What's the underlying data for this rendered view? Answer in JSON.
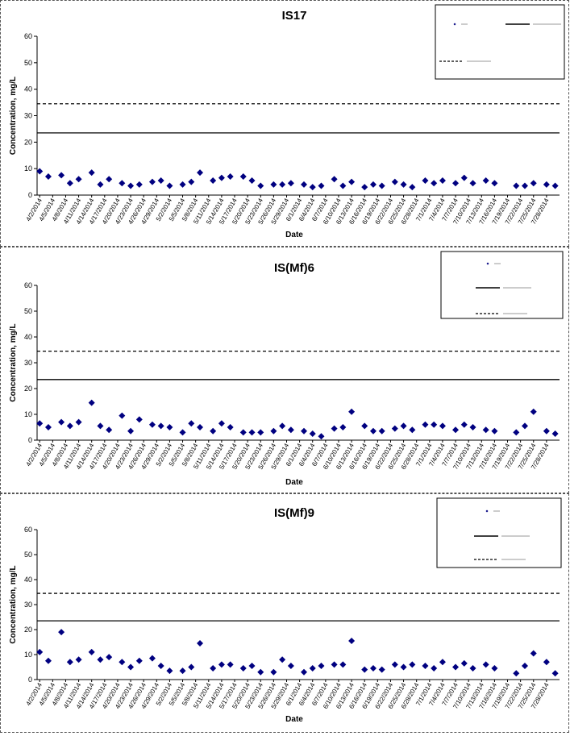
{
  "chart_data": [
    {
      "type": "scatter",
      "title": "IS17",
      "xlabel": "Date",
      "ylabel": "Concentration, mg/L",
      "ylim": [
        0,
        60
      ],
      "yticks": [
        0,
        10,
        20,
        30,
        40,
        50,
        60
      ],
      "x_tick_labels": [
        "4/2/2014",
        "4/5/2014",
        "4/8/2014",
        "4/11/2014",
        "4/14/2014",
        "4/17/2014",
        "4/20/2014",
        "4/23/2014",
        "4/26/2014",
        "4/29/2014",
        "5/2/2014",
        "5/5/2014",
        "5/8/2014",
        "5/11/2014",
        "5/14/2014",
        "5/17/2014",
        "5/20/2014",
        "5/23/2014",
        "5/26/2014",
        "5/29/2014",
        "6/1/2014",
        "6/4/2014",
        "6/7/2014",
        "6/10/2014",
        "6/13/2014",
        "6/16/2014",
        "6/19/2014",
        "6/22/2014",
        "6/25/2014",
        "6/28/2014",
        "7/1/2014",
        "7/4/2014",
        "7/7/2014",
        "7/10/2014",
        "7/13/2014",
        "7/16/2014",
        "7/19/2014",
        "7/22/2014",
        "7/25/2014",
        "7/28/2014"
      ],
      "series": [
        {
          "kind": "points",
          "color": "#000080",
          "x": [
            "4/2/2014",
            "4/4/2014",
            "4/7/2014",
            "4/9/2014",
            "4/11/2014",
            "4/14/2014",
            "4/16/2014",
            "4/18/2014",
            "4/21/2014",
            "4/23/2014",
            "4/25/2014",
            "4/28/2014",
            "4/30/2014",
            "5/2/2014",
            "5/5/2014",
            "5/7/2014",
            "5/9/2014",
            "5/12/2014",
            "5/14/2014",
            "5/16/2014",
            "5/19/2014",
            "5/21/2014",
            "5/23/2014",
            "5/26/2014",
            "5/28/2014",
            "5/30/2014",
            "6/2/2014",
            "6/4/2014",
            "6/6/2014",
            "6/9/2014",
            "6/11/2014",
            "6/13/2014",
            "6/16/2014",
            "6/18/2014",
            "6/20/2014",
            "6/23/2014",
            "6/25/2014",
            "6/27/2014",
            "6/30/2014",
            "7/2/2014",
            "7/4/2014",
            "7/7/2014",
            "7/9/2014",
            "7/11/2014",
            "7/14/2014",
            "7/16/2014",
            "7/21/2014",
            "7/23/2014",
            "7/25/2014",
            "7/28/2014",
            "7/30/2014"
          ],
          "y": [
            9,
            7,
            7.5,
            4.5,
            6,
            8.5,
            4,
            6,
            4.5,
            3.5,
            4,
            5,
            5.5,
            3.5,
            4,
            5,
            8.5,
            5.5,
            6.5,
            7,
            7,
            5.5,
            3.5,
            4,
            4,
            4.5,
            4,
            3,
            3.5,
            6,
            3.5,
            5,
            3,
            4,
            3.5,
            5,
            4,
            3,
            5.5,
            4.5,
            5.5,
            4.5,
            6.5,
            4.5,
            5.5,
            4.5,
            3.5,
            3.5,
            4.5,
            4,
            3.5
          ]
        },
        {
          "kind": "hline",
          "style": "solid",
          "y": 23.5
        },
        {
          "kind": "hline",
          "style": "dashed",
          "y": 34.5
        }
      ]
    },
    {
      "type": "scatter",
      "title": "IS(Mf)6",
      "xlabel": "Date",
      "ylabel": "Concentration, mg/L",
      "ylim": [
        0,
        60
      ],
      "yticks": [
        0,
        10,
        20,
        30,
        40,
        50,
        60
      ],
      "x_tick_labels": [
        "4/2/2014",
        "4/5/2014",
        "4/8/2014",
        "4/11/2014",
        "4/14/2014",
        "4/17/2014",
        "4/20/2014",
        "4/23/2014",
        "4/26/2014",
        "4/29/2014",
        "5/2/2014",
        "5/5/2014",
        "5/8/2014",
        "5/11/2014",
        "5/14/2014",
        "5/17/2014",
        "5/20/2014",
        "5/23/2014",
        "5/26/2014",
        "5/29/2014",
        "6/1/2014",
        "6/4/2014",
        "6/7/2014",
        "6/10/2014",
        "6/13/2014",
        "6/16/2014",
        "6/19/2014",
        "6/22/2014",
        "6/25/2014",
        "6/28/2014",
        "7/1/2014",
        "7/4/2014",
        "7/7/2014",
        "7/10/2014",
        "7/13/2014",
        "7/16/2014",
        "7/19/2014",
        "7/22/2014",
        "7/25/2014",
        "7/28/2014"
      ],
      "series": [
        {
          "kind": "points",
          "color": "#000080",
          "x": [
            "4/2/2014",
            "4/4/2014",
            "4/7/2014",
            "4/9/2014",
            "4/11/2014",
            "4/14/2014",
            "4/16/2014",
            "4/18/2014",
            "4/21/2014",
            "4/23/2014",
            "4/25/2014",
            "4/28/2014",
            "4/30/2014",
            "5/2/2014",
            "5/5/2014",
            "5/7/2014",
            "5/9/2014",
            "5/12/2014",
            "5/14/2014",
            "5/16/2014",
            "5/19/2014",
            "5/21/2014",
            "5/23/2014",
            "5/26/2014",
            "5/28/2014",
            "5/30/2014",
            "6/2/2014",
            "6/4/2014",
            "6/6/2014",
            "6/9/2014",
            "6/11/2014",
            "6/13/2014",
            "6/16/2014",
            "6/18/2014",
            "6/20/2014",
            "6/23/2014",
            "6/25/2014",
            "6/27/2014",
            "6/30/2014",
            "7/2/2014",
            "7/4/2014",
            "7/7/2014",
            "7/9/2014",
            "7/11/2014",
            "7/14/2014",
            "7/16/2014",
            "7/21/2014",
            "7/23/2014",
            "7/25/2014",
            "7/28/2014",
            "7/30/2014"
          ],
          "y": [
            6.5,
            5,
            7,
            5.5,
            7,
            14.5,
            5.5,
            4,
            9.5,
            3.5,
            8,
            6,
            5.5,
            5,
            3,
            6.5,
            5,
            3.5,
            6.5,
            5,
            3,
            3,
            3,
            3.5,
            5.5,
            4,
            3.5,
            2.5,
            1.5,
            4.5,
            5,
            11,
            5.5,
            3.5,
            3.5,
            4.5,
            5.5,
            4,
            6,
            6,
            5.5,
            4,
            6,
            5,
            4,
            3.5,
            3,
            5.5,
            11,
            3.5,
            2.5
          ]
        },
        {
          "kind": "hline",
          "style": "solid",
          "y": 23.5
        },
        {
          "kind": "hline",
          "style": "dashed",
          "y": 34.5
        }
      ]
    },
    {
      "type": "scatter",
      "title": "IS(Mf)9",
      "xlabel": "Date",
      "ylabel": "Concentration, mg/L",
      "ylim": [
        0,
        60
      ],
      "yticks": [
        0,
        10,
        20,
        30,
        40,
        50,
        60
      ],
      "x_tick_labels": [
        "4/2/2014",
        "4/5/2014",
        "4/8/2014",
        "4/11/2014",
        "4/14/2014",
        "4/17/2014",
        "4/20/2014",
        "4/23/2014",
        "4/26/2014",
        "4/29/2014",
        "5/2/2014",
        "5/5/2014",
        "5/8/2014",
        "5/11/2014",
        "5/14/2014",
        "5/17/2014",
        "5/20/2014",
        "5/23/2014",
        "5/26/2014",
        "5/29/2014",
        "6/1/2014",
        "6/4/2014",
        "6/7/2014",
        "6/10/2014",
        "6/13/2014",
        "6/16/2014",
        "6/19/2014",
        "6/22/2014",
        "6/25/2014",
        "6/28/2014",
        "7/1/2014",
        "7/4/2014",
        "7/7/2014",
        "7/10/2014",
        "7/13/2014",
        "7/16/2014",
        "7/19/2014",
        "7/22/2014",
        "7/25/2014",
        "7/28/2014"
      ],
      "series": [
        {
          "kind": "points",
          "color": "#000080",
          "x": [
            "4/2/2014",
            "4/4/2014",
            "4/7/2014",
            "4/9/2014",
            "4/11/2014",
            "4/14/2014",
            "4/16/2014",
            "4/18/2014",
            "4/21/2014",
            "4/23/2014",
            "4/25/2014",
            "4/28/2014",
            "4/30/2014",
            "5/2/2014",
            "5/5/2014",
            "5/7/2014",
            "5/9/2014",
            "5/12/2014",
            "5/14/2014",
            "5/16/2014",
            "5/19/2014",
            "5/21/2014",
            "5/23/2014",
            "5/26/2014",
            "5/28/2014",
            "5/30/2014",
            "6/2/2014",
            "6/4/2014",
            "6/6/2014",
            "6/9/2014",
            "6/11/2014",
            "6/13/2014",
            "6/16/2014",
            "6/18/2014",
            "6/20/2014",
            "6/23/2014",
            "6/25/2014",
            "6/27/2014",
            "6/30/2014",
            "7/2/2014",
            "7/4/2014",
            "7/7/2014",
            "7/9/2014",
            "7/11/2014",
            "7/14/2014",
            "7/16/2014",
            "7/21/2014",
            "7/23/2014",
            "7/25/2014",
            "7/28/2014",
            "7/30/2014"
          ],
          "y": [
            11,
            7.5,
            19,
            7,
            8,
            11,
            8,
            9,
            7,
            5,
            7.5,
            8.5,
            5.5,
            3.5,
            3.5,
            5,
            14.5,
            4.5,
            6,
            6,
            4.5,
            5.5,
            3,
            3,
            8,
            5.5,
            3,
            4.5,
            5.5,
            6,
            6,
            15.5,
            4,
            4.5,
            4,
            6,
            5,
            6,
            5.5,
            4.5,
            7,
            5,
            6.5,
            4.5,
            6,
            4.5,
            2.5,
            5.5,
            10.5,
            7,
            2.5
          ]
        },
        {
          "kind": "hline",
          "style": "solid",
          "y": 23.5
        },
        {
          "kind": "hline",
          "style": "dashed",
          "y": 34.5
        }
      ]
    }
  ]
}
